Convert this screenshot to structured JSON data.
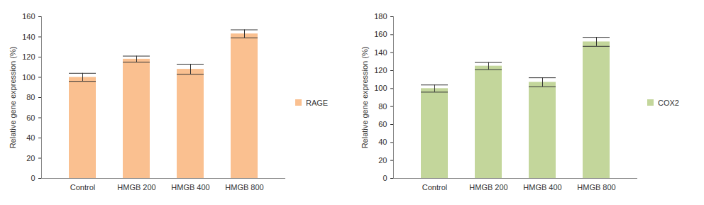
{
  "chart_data": [
    {
      "type": "bar",
      "categories": [
        "Control",
        "HMGB 200",
        "HMGB 400",
        "HMGB 800"
      ],
      "series": [
        {
          "name": "RAGE",
          "color": "#fac090",
          "values": [
            100,
            118,
            108,
            143
          ],
          "errors": [
            4,
            3,
            5,
            4
          ]
        }
      ],
      "y_label": "Relative gene expression (%)",
      "ylim": [
        0,
        160
      ],
      "yticks": [
        0,
        20,
        40,
        60,
        80,
        100,
        120,
        140,
        160
      ],
      "legend": "right",
      "grid": false
    },
    {
      "type": "bar",
      "categories": [
        "Control",
        "HMGB 200",
        "HMGB 400",
        "HMGB 800"
      ],
      "series": [
        {
          "name": "COX2",
          "color": "#c3d69b",
          "values": [
            100,
            125,
            107,
            152
          ],
          "errors": [
            4,
            4,
            5,
            5
          ]
        }
      ],
      "y_label": "Relative gene expression (%)",
      "ylim": [
        0,
        180
      ],
      "yticks": [
        0,
        20,
        40,
        60,
        80,
        100,
        120,
        140,
        160,
        180
      ],
      "legend": "right",
      "grid": false
    }
  ]
}
